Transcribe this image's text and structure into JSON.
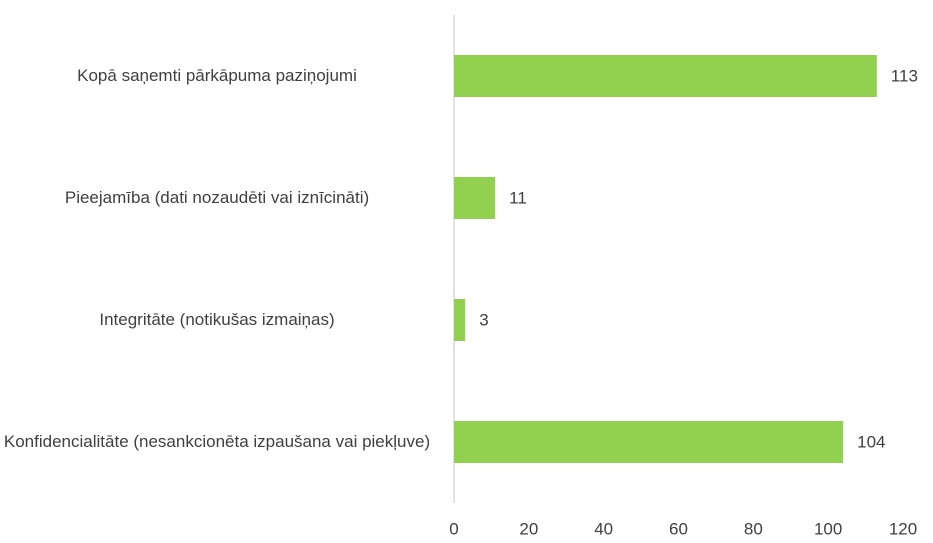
{
  "chart_data": {
    "type": "bar",
    "orientation": "horizontal",
    "categories": [
      "Kopā saņemti pārkāpuma paziņojumi",
      "Pieejamība (dati nozaudēti vai iznīcināti)",
      "Integritāte (notikušas izmaiņas)",
      "Konfidencialitāte (nesankcionēta izpaušana vai piekļuve)"
    ],
    "values": [
      113,
      11,
      3,
      104
    ],
    "color": "#92d050",
    "xlim": [
      0,
      120
    ],
    "xticks": [
      0,
      20,
      40,
      60,
      80,
      100,
      120
    ],
    "grid": false
  }
}
